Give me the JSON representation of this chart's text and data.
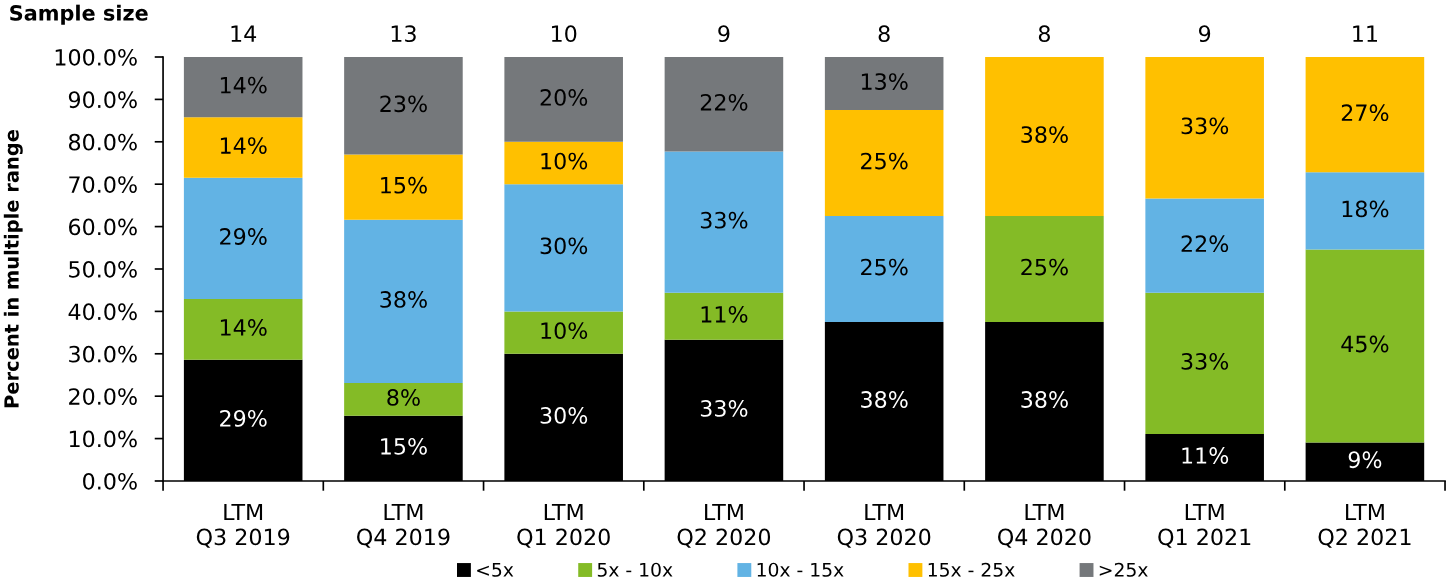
{
  "chart_data": {
    "type": "bar",
    "stacked": true,
    "ylabel": "Percent in multiple range",
    "categories": [
      "LTM\nQ3 2019",
      "LTM\nQ4 2019",
      "LTM\nQ1 2020",
      "LTM\nQ2 2020",
      "LTM\nQ3 2020",
      "LTM\nQ4 2020",
      "LTM\nQ1 2021",
      "LTM\nQ2 2021"
    ],
    "series": [
      {
        "name": "<5x",
        "color": "#000000",
        "values": [
          28.6,
          15.4,
          30,
          33.3,
          37.5,
          37.5,
          11.1,
          9.1
        ],
        "value_labels": [
          "29%",
          "15%",
          "30%",
          "33%",
          "38%",
          "38%",
          "11%",
          "9%"
        ]
      },
      {
        "name": "5x - 10x",
        "color": "#84bb26",
        "values": [
          14.3,
          7.7,
          10,
          11.1,
          null,
          25,
          33.3,
          45.5
        ],
        "value_labels": [
          "14%",
          "8%",
          "10%",
          "11%",
          null,
          "25%",
          "33%",
          "45%"
        ]
      },
      {
        "name": "10x - 15x",
        "color": "#62b3e4",
        "values": [
          28.6,
          38.5,
          30,
          33.3,
          25,
          null,
          22.2,
          18.2
        ],
        "value_labels": [
          "29%",
          "38%",
          "30%",
          "33%",
          "25%",
          null,
          "22%",
          "18%"
        ]
      },
      {
        "name": "15x - 25x",
        "color": "#ffc000",
        "values": [
          14.3,
          15.4,
          10,
          null,
          25,
          37.5,
          33.4,
          27.2
        ],
        "value_labels": [
          "14%",
          "15%",
          "10%",
          null,
          "25%",
          "38%",
          "33%",
          "27%"
        ]
      },
      {
        "name": ">25x",
        "color": "#75787b",
        "values": [
          14.2,
          23.0,
          20,
          22.3,
          12.5,
          null,
          null,
          null
        ],
        "value_labels": [
          "14%",
          "23%",
          "20%",
          "22%",
          "13%",
          null,
          null,
          null
        ]
      }
    ],
    "ylim": [
      0,
      100
    ],
    "yticks": [
      {
        "value": 0,
        "label": "0.0%"
      },
      {
        "value": 10,
        "label": "10.0%"
      },
      {
        "value": 20,
        "label": "20.0%"
      },
      {
        "value": 30,
        "label": "30.0%"
      },
      {
        "value": 40,
        "label": "40.0%"
      },
      {
        "value": 50,
        "label": "50.0%"
      },
      {
        "value": 60,
        "label": "60.0%"
      },
      {
        "value": 70,
        "label": "70.0%"
      },
      {
        "value": 80,
        "label": "80.0%"
      },
      {
        "value": 90,
        "label": "90.0%"
      },
      {
        "value": 100,
        "label": "100.0%"
      }
    ],
    "annotations": [
      "Sample size",
      "14",
      "13",
      "10",
      "9",
      "8",
      "8",
      "9",
      "11"
    ],
    "grid": false,
    "legend": "bottom"
  }
}
